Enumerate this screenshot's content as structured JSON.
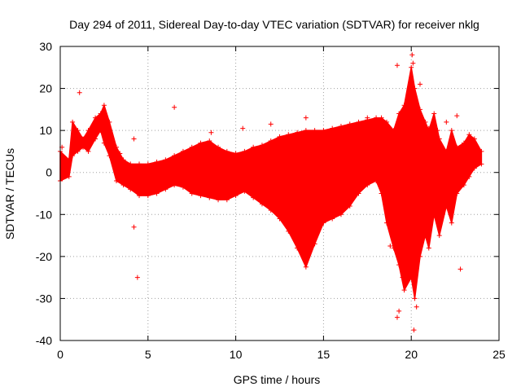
{
  "chart_data": {
    "type": "scatter",
    "title": "Day 294 of 2011, Sidereal Day-to-day VTEC variation (SDTVAR) for receiver nklg",
    "xlabel": "GPS time / hours",
    "ylabel": "SDTVAR / TECUs",
    "xlim": [
      0,
      25
    ],
    "ylim": [
      -40,
      30
    ],
    "xticks": [
      0,
      5,
      10,
      15,
      20,
      25
    ],
    "yticks": [
      -40,
      -30,
      -20,
      -10,
      0,
      10,
      20,
      30
    ],
    "grid": true,
    "marker": "+",
    "color": "#ff0000",
    "series": [
      {
        "name": "upper envelope",
        "x": [
          0.0,
          0.5,
          0.7,
          1.0,
          1.3,
          1.6,
          2.0,
          2.3,
          2.5,
          2.8,
          3.2,
          3.6,
          4.0,
          4.5,
          5.0,
          5.5,
          6.0,
          6.5,
          7.0,
          7.5,
          8.0,
          8.5,
          9.0,
          9.5,
          10.0,
          10.5,
          11.0,
          11.5,
          12.0,
          12.5,
          13.0,
          13.5,
          14.0,
          14.5,
          15.0,
          15.5,
          16.0,
          16.5,
          17.0,
          17.5,
          18.0,
          18.3,
          18.6,
          19.0,
          19.3,
          19.6,
          20.0,
          20.2,
          20.5,
          20.8,
          21.0,
          21.3,
          21.6,
          22.0,
          22.3,
          22.6,
          23.0,
          23.3,
          23.6,
          24.0
        ],
        "values": [
          5,
          3,
          12,
          10,
          8,
          10,
          13,
          14,
          16,
          12,
          6,
          3,
          2,
          2,
          2,
          2.5,
          3,
          4,
          5,
          6,
          7,
          7.5,
          6,
          5,
          4.5,
          5,
          6,
          6.5,
          7.5,
          8.5,
          9,
          9.5,
          10,
          10,
          10,
          10.5,
          11,
          11.5,
          12,
          12.5,
          13,
          13,
          12,
          10,
          14,
          16,
          25,
          20,
          15,
          12,
          10,
          14,
          8,
          5,
          10,
          6,
          7,
          9,
          8,
          5
        ]
      },
      {
        "name": "lower envelope",
        "x": [
          0.0,
          0.5,
          0.7,
          1.0,
          1.3,
          1.6,
          2.0,
          2.3,
          2.5,
          2.8,
          3.2,
          3.6,
          4.0,
          4.5,
          5.0,
          5.5,
          6.0,
          6.5,
          7.0,
          7.5,
          8.0,
          8.5,
          9.0,
          9.5,
          10.0,
          10.5,
          11.0,
          11.5,
          12.0,
          12.5,
          13.0,
          13.5,
          14.0,
          14.5,
          15.0,
          15.5,
          16.0,
          16.5,
          17.0,
          17.5,
          18.0,
          18.3,
          18.6,
          19.0,
          19.3,
          19.6,
          20.0,
          20.2,
          20.5,
          20.8,
          21.0,
          21.3,
          21.6,
          22.0,
          22.3,
          22.6,
          23.0,
          23.3,
          23.6,
          24.0
        ],
        "values": [
          -2,
          -1,
          4,
          5,
          6,
          5,
          8,
          10,
          7,
          4,
          -2,
          -3,
          -4,
          -5.5,
          -5.5,
          -5,
          -4,
          -3,
          -3.5,
          -5,
          -5.5,
          -6,
          -6.5,
          -6.5,
          -5.5,
          -4.5,
          -6,
          -7.5,
          -9,
          -11,
          -14,
          -18,
          -22.5,
          -17,
          -12,
          -11,
          -10,
          -8,
          -5,
          -3,
          -2,
          -5,
          -12,
          -18,
          -22,
          -28,
          -25,
          -30,
          -20,
          -15,
          -18,
          -10,
          -15,
          -8,
          -12,
          -5,
          -3,
          -1,
          1,
          2
        ]
      },
      {
        "name": "outliers",
        "x": [
          0.1,
          0.2,
          1.1,
          3.4,
          4.2,
          4.2,
          4.4,
          6.5,
          8.6,
          10.4,
          12.0,
          14.0,
          17.5,
          18.8,
          19.2,
          19.2,
          19.3,
          19.5,
          19.9,
          20.05,
          20.1,
          20.15,
          20.3,
          20.5,
          21.0,
          21.5,
          22.0,
          22.6,
          22.8
        ],
        "values": [
          6,
          -1,
          19,
          4.5,
          8,
          -13,
          -25,
          15.5,
          9.5,
          10.5,
          11.5,
          13,
          13,
          -17.5,
          25.5,
          -34.5,
          -33,
          -25,
          7.5,
          28,
          26,
          -37.5,
          -32,
          21,
          10.5,
          10,
          12,
          13.5,
          -23
        ]
      }
    ]
  }
}
